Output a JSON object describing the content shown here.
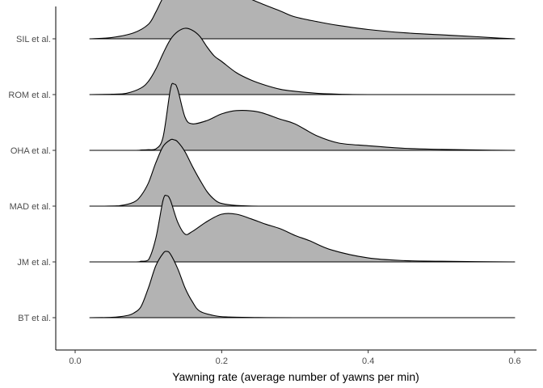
{
  "chart_data": {
    "type": "area",
    "subtype": "ridgeline-density",
    "title": "",
    "xlabel": "Yawning rate (average number of yawns per min)",
    "ylabel": "",
    "xlim": [
      -0.04,
      0.625
    ],
    "x_ticks": [
      0.0,
      0.2,
      0.4,
      0.6
    ],
    "x_tick_labels": [
      "0.0",
      "0.2",
      "0.4",
      "0.6"
    ],
    "categories": [
      "BT et al.",
      "JM et al.",
      "MAD et al.",
      "OHA et al.",
      "ROM et al.",
      "SIL et al."
    ],
    "fill_color": "#b3b3b3",
    "line_color": "#000000",
    "grid": false,
    "series": [
      {
        "name": "BT et al.",
        "x": [
          0.02,
          0.05,
          0.07,
          0.08,
          0.09,
          0.1,
          0.11,
          0.12,
          0.125,
          0.13,
          0.14,
          0.15,
          0.16,
          0.17,
          0.19,
          0.21,
          0.25,
          0.3,
          0.4,
          0.5,
          0.6
        ],
        "density": [
          0.0,
          0.005,
          0.03,
          0.07,
          0.17,
          0.45,
          0.78,
          0.97,
          1.0,
          0.96,
          0.74,
          0.45,
          0.24,
          0.1,
          0.03,
          0.01,
          0.003,
          0.0,
          0.0,
          0.0,
          0.0
        ]
      },
      {
        "name": "JM et al.",
        "x": [
          0.02,
          0.08,
          0.09,
          0.1,
          0.11,
          0.12,
          0.125,
          0.13,
          0.14,
          0.15,
          0.16,
          0.18,
          0.2,
          0.22,
          0.24,
          0.26,
          0.28,
          0.3,
          0.32,
          0.35,
          0.4,
          0.45,
          0.5,
          0.6
        ],
        "density": [
          0.0,
          0.0,
          0.01,
          0.03,
          0.35,
          0.93,
          1.0,
          0.93,
          0.6,
          0.42,
          0.46,
          0.61,
          0.72,
          0.72,
          0.65,
          0.57,
          0.5,
          0.4,
          0.32,
          0.18,
          0.06,
          0.02,
          0.01,
          0.0
        ]
      },
      {
        "name": "MAD et al.",
        "x": [
          0.02,
          0.04,
          0.06,
          0.08,
          0.09,
          0.1,
          0.11,
          0.12,
          0.13,
          0.135,
          0.14,
          0.15,
          0.16,
          0.17,
          0.18,
          0.19,
          0.2,
          0.22,
          0.25,
          0.3,
          0.4,
          0.6
        ],
        "density": [
          0.0,
          0.0,
          0.005,
          0.06,
          0.16,
          0.35,
          0.65,
          0.9,
          1.0,
          1.0,
          0.97,
          0.82,
          0.6,
          0.4,
          0.22,
          0.1,
          0.04,
          0.01,
          0.0,
          0.0,
          0.0,
          0.0
        ]
      },
      {
        "name": "OHA et al.",
        "x": [
          0.02,
          0.08,
          0.09,
          0.1,
          0.11,
          0.12,
          0.13,
          0.135,
          0.14,
          0.15,
          0.16,
          0.18,
          0.2,
          0.22,
          0.25,
          0.28,
          0.3,
          0.33,
          0.36,
          0.4,
          0.45,
          0.5,
          0.55,
          0.6
        ],
        "density": [
          0.0,
          0.0,
          0.005,
          0.01,
          0.02,
          0.2,
          0.92,
          1.0,
          0.92,
          0.5,
          0.4,
          0.45,
          0.55,
          0.6,
          0.58,
          0.47,
          0.4,
          0.22,
          0.11,
          0.07,
          0.03,
          0.015,
          0.005,
          0.0
        ]
      },
      {
        "name": "ROM et al.",
        "x": [
          0.02,
          0.05,
          0.07,
          0.09,
          0.1,
          0.11,
          0.12,
          0.13,
          0.14,
          0.15,
          0.16,
          0.17,
          0.18,
          0.19,
          0.2,
          0.22,
          0.24,
          0.26,
          0.28,
          0.3,
          0.33,
          0.35,
          0.4,
          0.6
        ],
        "density": [
          0.0,
          0.005,
          0.02,
          0.1,
          0.2,
          0.38,
          0.62,
          0.83,
          0.95,
          1.0,
          0.97,
          0.88,
          0.72,
          0.58,
          0.5,
          0.33,
          0.22,
          0.14,
          0.08,
          0.05,
          0.02,
          0.01,
          0.0,
          0.0
        ]
      },
      {
        "name": "SIL et al.",
        "x": [
          0.02,
          0.05,
          0.08,
          0.1,
          0.11,
          0.12,
          0.13,
          0.14,
          0.15,
          0.16,
          0.17,
          0.18,
          0.19,
          0.2,
          0.22,
          0.25,
          0.28,
          0.3,
          0.33,
          0.36,
          0.4,
          0.45,
          0.5,
          0.55,
          0.58,
          0.6
        ],
        "density": [
          0.0,
          0.02,
          0.09,
          0.22,
          0.4,
          0.62,
          0.74,
          0.8,
          0.85,
          0.9,
          0.93,
          0.93,
          0.9,
          0.82,
          0.7,
          0.55,
          0.42,
          0.33,
          0.26,
          0.2,
          0.14,
          0.09,
          0.06,
          0.03,
          0.01,
          0.0
        ]
      }
    ]
  }
}
